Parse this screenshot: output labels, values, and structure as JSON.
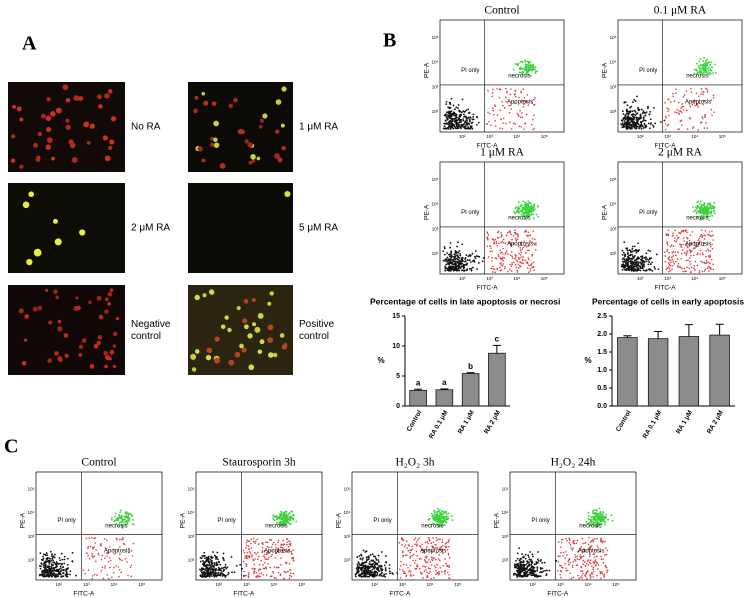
{
  "panel_a": {
    "label": "A",
    "images": [
      {
        "label": "No RA"
      },
      {
        "label": "1 μM RA"
      },
      {
        "label": "2 μM RA"
      },
      {
        "label": "5 μM RA"
      },
      {
        "label": "Negative control"
      },
      {
        "label": "Positive control"
      }
    ]
  },
  "flow_labels": {
    "pi_only": "PI only",
    "necrosis": "necrosis",
    "apoptosis": "Apoptosis",
    "y_axis": "PE-A",
    "x_axis": "FITC-A",
    "ticks": [
      "10²",
      "10³",
      "10⁴",
      "10⁵"
    ]
  },
  "panel_b": {
    "label": "B",
    "flow_plots": [
      {
        "title": "Control"
      },
      {
        "title": "0.1 μM RA"
      },
      {
        "title": "1 μM RA"
      },
      {
        "title": "2 μM RA"
      }
    ]
  },
  "panel_c": {
    "label": "C",
    "flow_plots": [
      {
        "title": "Control"
      },
      {
        "title": "Staurosporin 3h"
      },
      {
        "title": "H₂O₂ 3h"
      },
      {
        "title": "H₂O₂ 24h"
      }
    ]
  },
  "chart_data": [
    {
      "type": "bar",
      "title": "Percentage of cells in late apoptosis or necrosi",
      "y_label": "%",
      "categories": [
        "Control",
        "RA 0.1 μM",
        "RA 1 μM",
        "RA 2 μM"
      ],
      "values": [
        2.6,
        2.7,
        5.4,
        8.8
      ],
      "errors": [
        0.2,
        0.15,
        0.15,
        1.3
      ],
      "annotations": [
        "a",
        "a",
        "b",
        "c"
      ],
      "color": "#8c8c8c",
      "ylim": [
        0,
        15
      ],
      "yticks": [
        0,
        5,
        10,
        15
      ]
    },
    {
      "type": "bar",
      "title": "Percentage of cells in early apoptosis",
      "y_label": "%",
      "categories": [
        "Control",
        "RA 0.1 μM",
        "RA 1 μM",
        "RA 2 μM"
      ],
      "values": [
        1.9,
        1.87,
        1.93,
        1.97
      ],
      "errors": [
        0.05,
        0.2,
        0.33,
        0.3
      ],
      "color": "#8c8c8c",
      "ylim": [
        0,
        2.5
      ],
      "yticks": [
        {
          "value": 0,
          "label": "0.0"
        },
        0.5,
        {
          "value": 1,
          "label": "1.0"
        },
        1.5,
        {
          "value": 2,
          "label": "2.0"
        },
        2.5
      ]
    }
  ]
}
